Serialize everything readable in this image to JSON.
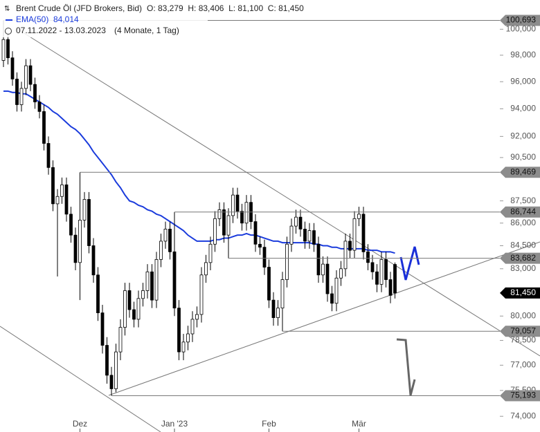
{
  "header": {
    "title": "Brent Crude Öl (JFD Brokers, Bid)",
    "ohlc_label": "O: 83,279  H: 83,406  L: 81,100  C: 81,450",
    "ema_name": "EMA(50)",
    "ema_value": "84,014",
    "range": "07.11.2022 - 13.03.2023",
    "duration": "(4 Monate, 1 Tag)"
  },
  "chart_data": {
    "type": "candlestick",
    "log": true,
    "ylim": [
      73.1,
      102.3
    ],
    "up_color": "#ffffff",
    "down_color": "#000000",
    "ema_color": "#1a3bdc",
    "yticks": [
      {
        "value": 74,
        "label": "74,000"
      },
      {
        "value": 75.5,
        "label": "75,500"
      },
      {
        "value": 77,
        "label": "77,000"
      },
      {
        "value": 78.5,
        "label": "78,500"
      },
      {
        "value": 80,
        "label": "80,000"
      },
      {
        "value": 83,
        "label": "83,000"
      },
      {
        "value": 84.5,
        "label": "84,500"
      },
      {
        "value": 86,
        "label": "86,000"
      },
      {
        "value": 87.5,
        "label": "87,500"
      },
      {
        "value": 90.5,
        "label": "90,500"
      },
      {
        "value": 92,
        "label": "92,000"
      },
      {
        "value": 94,
        "label": "94,000"
      },
      {
        "value": 96,
        "label": "96,000"
      },
      {
        "value": 98,
        "label": "98,000"
      },
      {
        "value": 100,
        "label": "100,000"
      }
    ],
    "x_labels": [
      {
        "index": 17,
        "label": "Dez"
      },
      {
        "index": 38,
        "label": "Jan '23"
      },
      {
        "index": 59,
        "label": "Feb"
      },
      {
        "index": 79,
        "label": "Mär"
      }
    ],
    "levels": [
      {
        "value": 100.693,
        "label": "100,693"
      },
      {
        "value": 89.469,
        "label": "89,469"
      },
      {
        "value": 86.744,
        "label": "86,744"
      },
      {
        "value": 83.682,
        "label": "83,682"
      },
      {
        "value": 81.45,
        "label": "81,450",
        "current": true
      },
      {
        "value": 79.057,
        "label": "79,057"
      },
      {
        "value": 75.193,
        "label": "75,193"
      }
    ],
    "ohlc": [
      [
        97.6,
        100.693,
        97.1,
        99.2
      ],
      [
        99.2,
        99.7,
        97.3,
        97.8
      ],
      [
        97.8,
        98.3,
        95.7,
        96.2
      ],
      [
        96.2,
        96.7,
        93.8,
        94.3
      ],
      [
        94.3,
        96.0,
        93.8,
        95.5
      ],
      [
        95.5,
        97.7,
        95.0,
        97.2
      ],
      [
        97.2,
        97.7,
        95.3,
        95.8
      ],
      [
        95.8,
        96.3,
        94.0,
        94.5
      ],
      [
        94.5,
        95.0,
        93.3,
        93.8
      ],
      [
        93.8,
        94.3,
        91.0,
        91.5
      ],
      [
        91.5,
        92.0,
        89.3,
        89.8
      ],
      [
        89.8,
        90.3,
        86.8,
        87.3
      ],
      [
        87.3,
        88.3,
        82.5,
        87.8
      ],
      [
        87.8,
        89.1,
        87.3,
        88.6
      ],
      [
        88.6,
        89.1,
        86.1,
        86.6
      ],
      [
        86.6,
        87.1,
        84.7,
        85.2
      ],
      [
        85.2,
        85.7,
        82.9,
        83.4
      ],
      [
        83.4,
        89.469,
        81.0,
        86.2
      ],
      [
        86.2,
        88.1,
        85.7,
        87.6
      ],
      [
        87.6,
        88.1,
        84.0,
        84.5
      ],
      [
        84.5,
        85.0,
        82.1,
        82.6
      ],
      [
        82.6,
        83.1,
        79.7,
        80.2
      ],
      [
        80.2,
        80.7,
        77.7,
        78.2
      ],
      [
        78.2,
        78.7,
        75.9,
        76.4
      ],
      [
        76.4,
        76.9,
        75.193,
        75.6
      ],
      [
        75.6,
        78.3,
        75.4,
        77.8
      ],
      [
        77.8,
        79.8,
        77.3,
        79.3
      ],
      [
        79.3,
        82.1,
        78.8,
        81.6
      ],
      [
        81.6,
        82.1,
        79.9,
        80.4
      ],
      [
        80.4,
        80.9,
        79.3,
        79.8
      ],
      [
        79.8,
        81.6,
        79.3,
        81.1
      ],
      [
        81.1,
        82.1,
        80.6,
        81.6
      ],
      [
        81.6,
        83.3,
        81.1,
        82.8
      ],
      [
        82.8,
        83.3,
        80.5,
        81.0
      ],
      [
        81.0,
        84.1,
        80.5,
        83.6
      ],
      [
        83.6,
        85.3,
        83.1,
        84.8
      ],
      [
        84.8,
        86.1,
        84.3,
        85.6
      ],
      [
        85.6,
        86.1,
        83.6,
        84.1
      ],
      [
        84.1,
        86.744,
        80.0,
        80.5
      ],
      [
        80.5,
        81.0,
        77.3,
        77.8
      ],
      [
        77.8,
        78.9,
        77.3,
        78.4
      ],
      [
        78.4,
        79.4,
        77.9,
        78.9
      ],
      [
        78.9,
        80.3,
        78.4,
        79.8
      ],
      [
        79.8,
        80.6,
        79.3,
        80.1
      ],
      [
        80.1,
        83.1,
        79.6,
        82.6
      ],
      [
        82.6,
        83.9,
        82.1,
        83.4
      ],
      [
        83.4,
        85.1,
        82.9,
        84.6
      ],
      [
        84.6,
        86.8,
        84.1,
        86.3
      ],
      [
        86.3,
        87.4,
        85.8,
        86.9
      ],
      [
        86.9,
        87.4,
        84.7,
        85.2
      ],
      [
        85.2,
        87.0,
        83.682,
        86.5
      ],
      [
        86.5,
        88.4,
        86.0,
        87.9
      ],
      [
        87.9,
        88.4,
        86.3,
        86.8
      ],
      [
        86.8,
        87.3,
        85.5,
        86.0
      ],
      [
        86.0,
        87.9,
        85.5,
        87.4
      ],
      [
        87.4,
        87.9,
        85.6,
        86.1
      ],
      [
        86.1,
        86.6,
        84.1,
        84.6
      ],
      [
        84.6,
        85.1,
        83.9,
        84.4
      ],
      [
        84.4,
        84.9,
        82.6,
        83.1
      ],
      [
        83.1,
        83.6,
        80.5,
        81.0
      ],
      [
        81.0,
        81.5,
        79.4,
        79.9
      ],
      [
        79.9,
        81.0,
        79.4,
        80.5
      ],
      [
        80.5,
        82.8,
        79.057,
        82.3
      ],
      [
        82.3,
        85.1,
        81.8,
        84.6
      ],
      [
        84.6,
        86.3,
        84.1,
        85.8
      ],
      [
        85.8,
        86.9,
        85.3,
        86.4
      ],
      [
        86.4,
        86.9,
        85.1,
        85.6
      ],
      [
        85.6,
        86.1,
        84.3,
        84.8
      ],
      [
        84.8,
        86.0,
        84.3,
        85.5
      ],
      [
        85.5,
        86.0,
        84.1,
        84.6
      ],
      [
        84.6,
        85.1,
        82.1,
        82.6
      ],
      [
        82.6,
        83.8,
        82.1,
        83.3
      ],
      [
        83.3,
        83.8,
        80.9,
        81.4
      ],
      [
        81.4,
        81.9,
        80.3,
        80.8
      ],
      [
        80.8,
        82.9,
        80.3,
        82.4
      ],
      [
        82.4,
        83.5,
        81.9,
        83.0
      ],
      [
        83.0,
        85.3,
        82.5,
        84.8
      ],
      [
        84.8,
        85.3,
        83.7,
        84.2
      ],
      [
        84.2,
        86.8,
        83.7,
        86.3
      ],
      [
        86.3,
        87.1,
        85.8,
        86.6
      ],
      [
        86.6,
        87.1,
        83.6,
        84.1
      ],
      [
        84.1,
        84.6,
        82.9,
        83.4
      ],
      [
        83.4,
        83.9,
        82.3,
        82.8
      ],
      [
        82.8,
        83.3,
        81.5,
        82.0
      ],
      [
        82.0,
        84.1,
        81.5,
        83.6
      ],
      [
        83.6,
        84.1,
        81.8,
        82.3
      ],
      [
        82.3,
        82.8,
        80.8,
        81.3
      ],
      [
        83.279,
        83.406,
        81.1,
        81.45
      ]
    ],
    "ema": [
      95.3,
      95.3,
      95.2,
      95.2,
      95.1,
      95.1,
      94.9,
      94.7,
      94.5,
      94.3,
      94.1,
      93.8,
      93.6,
      93.3,
      93.0,
      92.7,
      92.5,
      92.2,
      91.8,
      91.4,
      90.9,
      90.5,
      90.1,
      89.7,
      89.3,
      88.8,
      88.4,
      87.9,
      87.5,
      87.4,
      87.2,
      87.1,
      86.9,
      86.8,
      86.6,
      86.5,
      86.3,
      86.1,
      85.9,
      85.7,
      85.5,
      85.2,
      85.0,
      84.8,
      84.8,
      84.8,
      84.8,
      84.9,
      84.9,
      85.0,
      85.0,
      85.1,
      85.2,
      85.2,
      85.3,
      85.2,
      85.2,
      85.1,
      85.0,
      84.9,
      84.8,
      84.8,
      84.7,
      84.7,
      84.7,
      84.7,
      84.7,
      84.7,
      84.7,
      84.6,
      84.6,
      84.5,
      84.5,
      84.4,
      84.4,
      84.3,
      84.3,
      84.3,
      84.3,
      84.3,
      84.3,
      84.2,
      84.2,
      84.2,
      84.1,
      84.1,
      84.1,
      84.014
    ]
  }
}
